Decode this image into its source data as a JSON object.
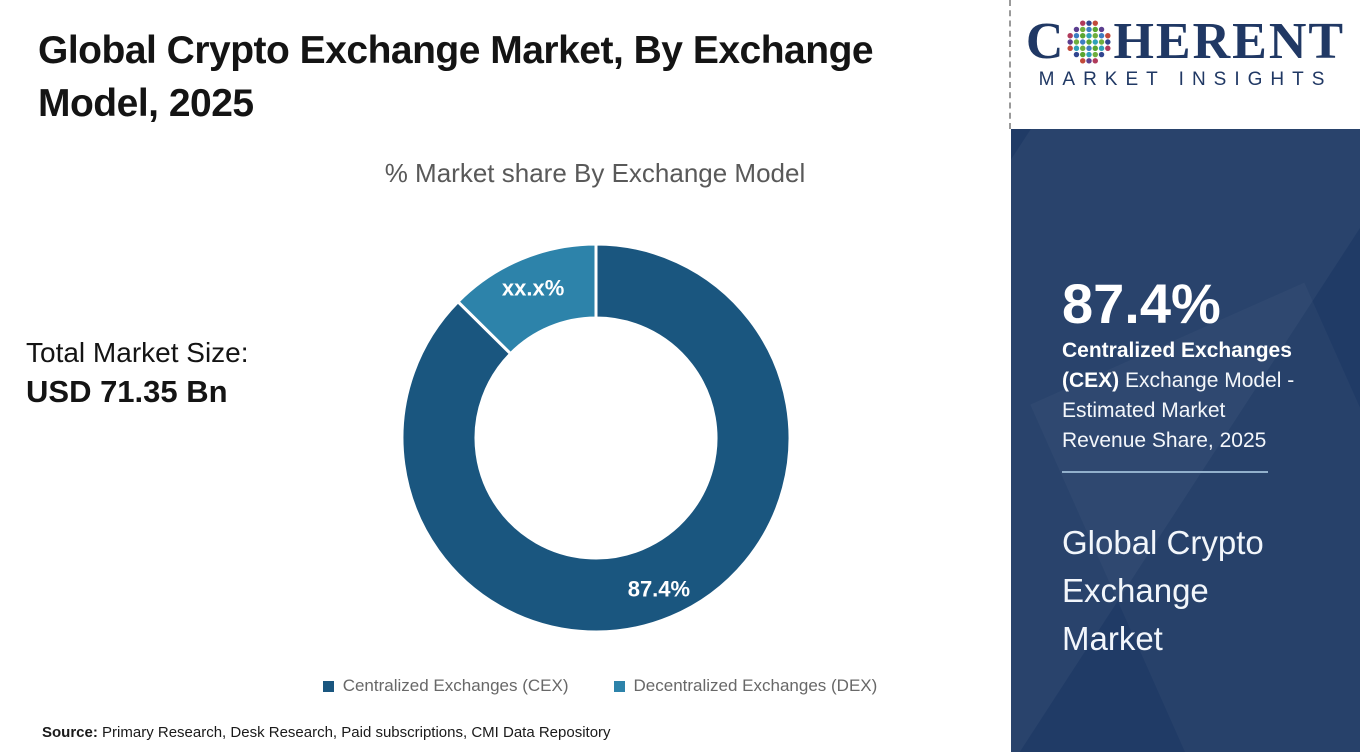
{
  "page": {
    "title": "Global Crypto Exchange Market, By Exchange Model, 2025"
  },
  "chart_data": {
    "type": "pie",
    "subtype": "donut",
    "title": "% Market share By Exchange Model",
    "categories": [
      "Centralized Exchanges (CEX)",
      "Decentralized Exchanges (DEX)"
    ],
    "values": [
      87.4,
      12.6
    ],
    "value_labels": [
      "87.4%",
      "xx.x%"
    ],
    "colors": [
      "#1A567F",
      "#2D83AA"
    ],
    "start_angle_deg": 0,
    "direction": "clockwise",
    "inner_radius_ratio": 0.62,
    "legend_position": "bottom"
  },
  "stats": {
    "total_label": "Total Market Size:",
    "total_value": "USD 71.35 Bn"
  },
  "source": {
    "label": "Source:",
    "text": " Primary Research, Desk Research, Paid subscriptions, CMI Data Repository"
  },
  "brand": {
    "word_start": "C",
    "word_rest": "HERENT",
    "tagline": "MARKET INSIGHTS"
  },
  "sidebar": {
    "highlight_value": "87.4%",
    "highlight_bold": "Centralized Exchanges (CEX)",
    "highlight_rest": " Exchange Model - Estimated Market Revenue Share, 2025",
    "report_title": "Global Crypto Exchange Market"
  },
  "colors": {
    "cex": "#1A567F",
    "dex": "#2D83AA",
    "sidebar_bg": "#203B66",
    "brand_navy": "#203864",
    "sidebar_divider": "#8FAECB",
    "subtitle_gray": "#595959"
  }
}
